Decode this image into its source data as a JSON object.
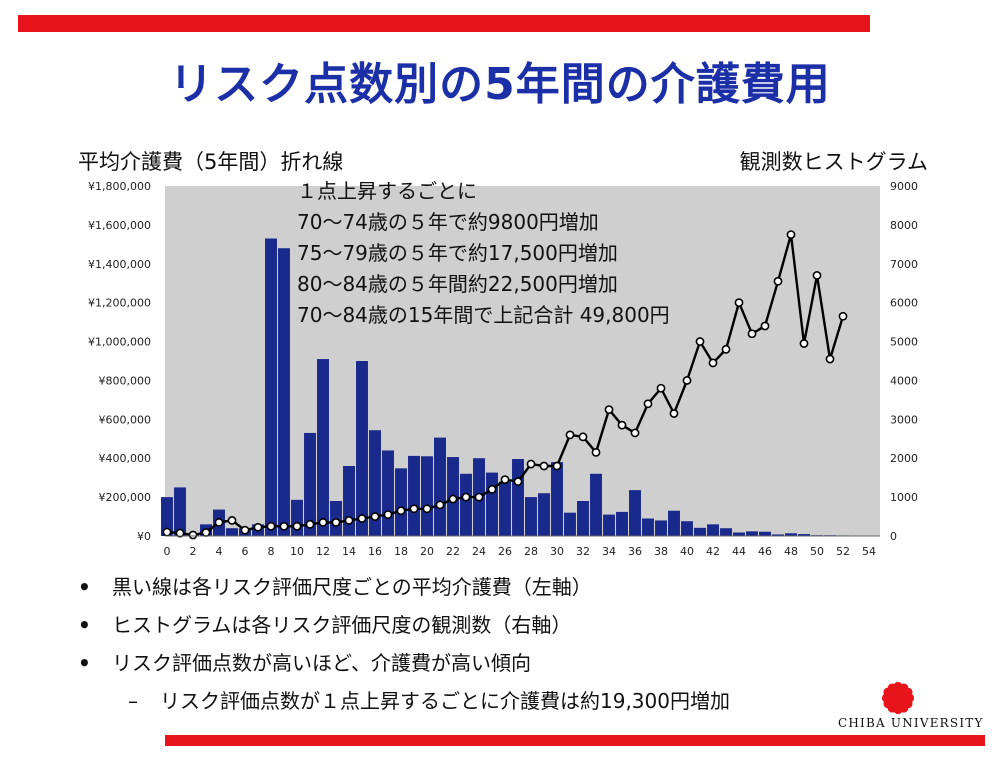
{
  "title": "リスク点数別の5年間の介護費用",
  "left_axis_label": "平均介護費（5年間）折れ線",
  "right_axis_label": "観測数ヒストグラム",
  "annotation": [
    "１点上昇するごとに",
    "70～74歳の５年で約9800円増加",
    "75～79歳の５年で約17,500円増加",
    "80～84歳の５年間約22,500円増加",
    "70～84歳の15年間で上記合計 49,800円"
  ],
  "bullets": [
    "黒い線は各リスク評価尺度ごとの平均介護費（左軸）",
    "ヒストグラムは各リスク評価尺度の観測数（右軸）",
    "リスク評価点数が高いほど、介護費が高い傾向"
  ],
  "sub_bullet": "リスク評価点数が１点上昇するごとに介護費は約19,300円増加",
  "bullet_marker": "•",
  "sub_marker": "–",
  "footer": "CHIBA UNIVERSITY",
  "colors": {
    "title": "#1b2fa6",
    "accent_red": "#e8141b",
    "bars": "#1a2a8c",
    "plot_bg": "#cfcfcf",
    "line": "#000000"
  },
  "chart_data": {
    "type": "bar+line",
    "x_ticks": [
      "0",
      "2",
      "4",
      "6",
      "8",
      "10",
      "12",
      "14",
      "16",
      "18",
      "20",
      "22",
      "24",
      "26",
      "28",
      "30",
      "32",
      "34",
      "36",
      "38",
      "40",
      "42",
      "44",
      "46",
      "48",
      "50",
      "52",
      "54"
    ],
    "left_axis": {
      "ticks": [
        "¥0",
        "¥200,000",
        "¥400,000",
        "¥600,000",
        "¥800,000",
        "¥1,000,000",
        "¥1,200,000",
        "¥1,400,000",
        "¥1,600,000",
        "¥1,800,000"
      ],
      "range": [
        0,
        1800000
      ]
    },
    "right_axis": {
      "ticks": [
        "0",
        "1000",
        "2000",
        "3000",
        "4000",
        "5000",
        "6000",
        "7000",
        "8000",
        "9000"
      ],
      "range": [
        0,
        9000
      ]
    },
    "histogram": {
      "x": [
        0,
        1,
        2,
        3,
        4,
        5,
        6,
        7,
        8,
        9,
        10,
        11,
        12,
        13,
        14,
        15,
        16,
        17,
        18,
        19,
        20,
        21,
        22,
        23,
        24,
        25,
        26,
        27,
        28,
        29,
        30,
        31,
        32,
        33,
        34,
        35,
        36,
        37,
        38,
        39,
        40,
        41,
        42,
        43,
        44,
        45,
        46,
        47,
        48,
        49,
        50,
        51,
        52,
        53
      ],
      "counts": [
        1000,
        1250,
        50,
        300,
        680,
        200,
        200,
        300,
        7650,
        7400,
        930,
        2650,
        4550,
        900,
        1800,
        4500,
        2720,
        2200,
        1740,
        2060,
        2050,
        2530,
        2030,
        1600,
        2000,
        1630,
        1400,
        1980,
        1000,
        1100,
        1900,
        600,
        900,
        1600,
        550,
        620,
        1180,
        450,
        400,
        650,
        380,
        210,
        300,
        200,
        90,
        120,
        110,
        40,
        70,
        50,
        20,
        20,
        15,
        5
      ]
    },
    "line": {
      "x": [
        0,
        1,
        2,
        3,
        4,
        5,
        6,
        7,
        8,
        9,
        10,
        11,
        12,
        13,
        14,
        15,
        16,
        17,
        18,
        19,
        20,
        21,
        22,
        23,
        24,
        25,
        26,
        27,
        28,
        29,
        30,
        31,
        32,
        33,
        34,
        35,
        36,
        37,
        38,
        39,
        40,
        41,
        42,
        43,
        44,
        45,
        46,
        47,
        48,
        49,
        50,
        51,
        52
      ],
      "y": [
        20000,
        15000,
        5000,
        18000,
        70000,
        80000,
        30000,
        45000,
        50000,
        50000,
        50000,
        60000,
        70000,
        70000,
        80000,
        90000,
        100000,
        110000,
        130000,
        140000,
        140000,
        160000,
        190000,
        200000,
        200000,
        240000,
        290000,
        280000,
        370000,
        360000,
        360000,
        520000,
        510000,
        430000,
        650000,
        570000,
        530000,
        680000,
        760000,
        630000,
        800000,
        1000000,
        890000,
        960000,
        1200000,
        1040000,
        1080000,
        1310000,
        1550000,
        990000,
        1340000,
        910000,
        1130000
      ]
    }
  }
}
